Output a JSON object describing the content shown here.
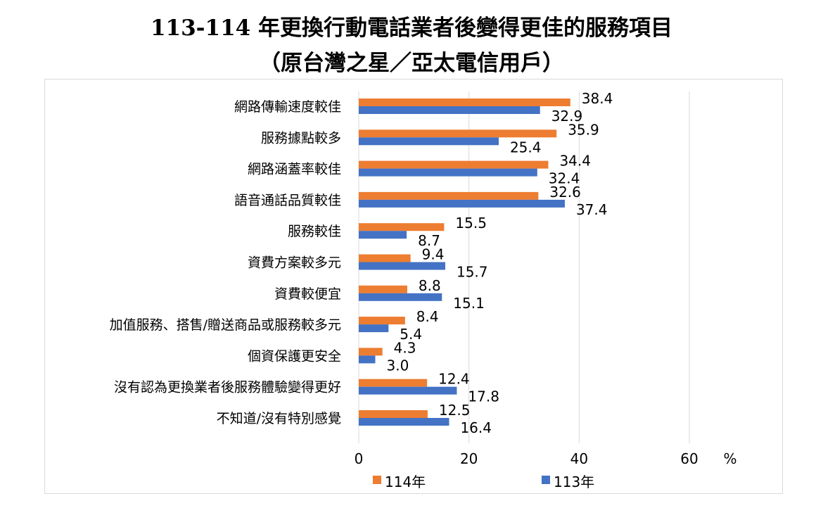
{
  "chart_data": {
    "type": "bar",
    "orientation": "horizontal",
    "title": "113-114 年更換行動電話業者後變得更佳的服務項目",
    "subtitle": "（原台灣之星／亞太電信用戶）",
    "unit": "%",
    "categories": [
      "網路傳輸速度較佳",
      "服務據點較多",
      "網路涵蓋率較佳",
      "語音通話品質較佳",
      "服務較佳",
      "資費方案較多元",
      "資費較便宜",
      "加值服務、搭售/贈送商品或服務較多元",
      "個資保護更安全",
      "沒有認為更換業者後服務體驗變得更好",
      "不知道/沒有特別感覺"
    ],
    "series": [
      {
        "name": "114年",
        "color": "#ED7D31",
        "values": [
          38.4,
          35.9,
          34.4,
          32.6,
          15.5,
          9.4,
          8.8,
          8.4,
          4.3,
          12.4,
          12.5
        ],
        "labels": [
          "38.4",
          "35.9",
          "34.4",
          "32.6",
          "15.5",
          "9.4",
          "8.8",
          "8.4",
          "4.3",
          "12.4",
          "12.5"
        ]
      },
      {
        "name": "113年",
        "color": "#4472C4",
        "values": [
          32.9,
          25.4,
          32.4,
          37.4,
          8.7,
          15.7,
          15.1,
          5.4,
          3.0,
          17.8,
          16.4
        ],
        "labels": [
          "32.9",
          "25.4",
          "32.4",
          "37.4",
          "8.7",
          "15.7",
          "15.1",
          "5.4",
          "3.0",
          "17.8",
          "16.4"
        ]
      }
    ],
    "xlim": [
      0,
      60
    ],
    "xticks": [
      0,
      20,
      40,
      60
    ],
    "xtick_labels": [
      "0",
      "20",
      "40",
      "60"
    ],
    "grid": true,
    "legend": "bottom"
  }
}
